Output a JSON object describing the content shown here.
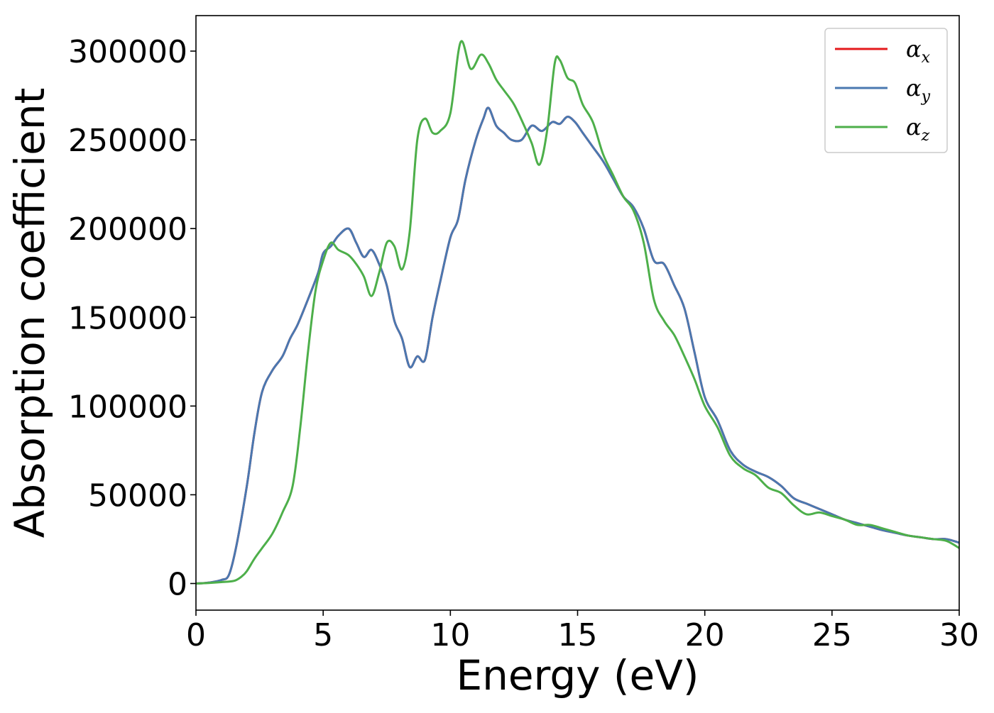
{
  "chart_data": {
    "type": "line",
    "title": "",
    "xlabel": "Energy (eV)",
    "ylabel": "Absorption coefficient",
    "xlim": [
      0,
      30
    ],
    "ylim": [
      -15000,
      320000
    ],
    "xticks": [
      0,
      5,
      10,
      15,
      20,
      25,
      30
    ],
    "xtick_labels": [
      "0",
      "5",
      "10",
      "15",
      "20",
      "25",
      "30"
    ],
    "yticks": [
      0,
      50000,
      100000,
      150000,
      200000,
      250000,
      300000
    ],
    "ytick_labels": [
      "0",
      "50000",
      "100000",
      "150000",
      "200000",
      "250000",
      "300000"
    ],
    "grid": false,
    "legend_position": "top-right",
    "series": [
      {
        "name": "αx",
        "legend_symbol": "α",
        "legend_subscript": "x",
        "color": "#e41a1c",
        "x": [
          0,
          0.5,
          1.0,
          1.3,
          1.6,
          2.0,
          2.3,
          2.6,
          3.0,
          3.4,
          3.7,
          4.0,
          4.4,
          4.8,
          5.0,
          5.3,
          5.6,
          6.0,
          6.3,
          6.6,
          6.9,
          7.2,
          7.5,
          7.8,
          8.1,
          8.4,
          8.7,
          9.0,
          9.3,
          9.6,
          10.0,
          10.3,
          10.6,
          11.0,
          11.3,
          11.5,
          11.8,
          12.1,
          12.4,
          12.8,
          13.2,
          13.6,
          14.0,
          14.3,
          14.6,
          14.9,
          15.2,
          15.6,
          16.0,
          16.4,
          16.8,
          17.2,
          17.6,
          18.0,
          18.4,
          18.8,
          19.2,
          19.6,
          20.0,
          20.5,
          21.0,
          21.5,
          22.0,
          22.5,
          23.0,
          23.5,
          24.0,
          24.5,
          25.0,
          25.5,
          26.0,
          26.5,
          27.0,
          27.5,
          28.0,
          28.5,
          29.0,
          29.5,
          30.0
        ],
        "values": [
          0,
          500,
          2000,
          5000,
          22000,
          55000,
          85000,
          108000,
          120000,
          128000,
          138000,
          146000,
          160000,
          175000,
          186000,
          190000,
          196000,
          200000,
          192000,
          184000,
          188000,
          180000,
          168000,
          148000,
          138000,
          122000,
          128000,
          126000,
          150000,
          170000,
          195000,
          205000,
          228000,
          250000,
          262000,
          268000,
          258000,
          254000,
          250000,
          250000,
          258000,
          255000,
          260000,
          259000,
          263000,
          260000,
          254000,
          246000,
          238000,
          228000,
          218000,
          212000,
          200000,
          182000,
          180000,
          168000,
          155000,
          130000,
          105000,
          92000,
          75000,
          67000,
          63000,
          60000,
          55000,
          48000,
          45000,
          42000,
          39000,
          36000,
          34000,
          32000,
          30000,
          28500,
          27000,
          26000,
          25000,
          25000,
          23000
        ]
      },
      {
        "name": "αy",
        "legend_symbol": "α",
        "legend_subscript": "y",
        "color": "#4a78b0",
        "x": [
          0,
          0.5,
          1.0,
          1.3,
          1.6,
          2.0,
          2.3,
          2.6,
          3.0,
          3.4,
          3.7,
          4.0,
          4.4,
          4.8,
          5.0,
          5.3,
          5.6,
          6.0,
          6.3,
          6.6,
          6.9,
          7.2,
          7.5,
          7.8,
          8.1,
          8.4,
          8.7,
          9.0,
          9.3,
          9.6,
          10.0,
          10.3,
          10.6,
          11.0,
          11.3,
          11.5,
          11.8,
          12.1,
          12.4,
          12.8,
          13.2,
          13.6,
          14.0,
          14.3,
          14.6,
          14.9,
          15.2,
          15.6,
          16.0,
          16.4,
          16.8,
          17.2,
          17.6,
          18.0,
          18.4,
          18.8,
          19.2,
          19.6,
          20.0,
          20.5,
          21.0,
          21.5,
          22.0,
          22.5,
          23.0,
          23.5,
          24.0,
          24.5,
          25.0,
          25.5,
          26.0,
          26.5,
          27.0,
          27.5,
          28.0,
          28.5,
          29.0,
          29.5,
          30.0
        ],
        "values": [
          0,
          500,
          2000,
          5000,
          22000,
          55000,
          85000,
          108000,
          120000,
          128000,
          138000,
          146000,
          160000,
          175000,
          186000,
          190000,
          196000,
          200000,
          192000,
          184000,
          188000,
          180000,
          168000,
          148000,
          138000,
          122000,
          128000,
          126000,
          150000,
          170000,
          195000,
          205000,
          228000,
          250000,
          262000,
          268000,
          258000,
          254000,
          250000,
          250000,
          258000,
          255000,
          260000,
          259000,
          263000,
          260000,
          254000,
          246000,
          238000,
          228000,
          218000,
          212000,
          200000,
          182000,
          180000,
          168000,
          155000,
          130000,
          105000,
          92000,
          75000,
          67000,
          63000,
          60000,
          55000,
          48000,
          45000,
          42000,
          39000,
          36000,
          34000,
          32000,
          30000,
          28500,
          27000,
          26000,
          25000,
          25000,
          23000
        ]
      },
      {
        "name": "αz",
        "legend_symbol": "α",
        "legend_subscript": "z",
        "color": "#4daf4a",
        "x": [
          0,
          0.5,
          1.0,
          1.5,
          1.8,
          2.0,
          2.3,
          2.6,
          3.0,
          3.4,
          3.8,
          4.1,
          4.4,
          4.7,
          5.0,
          5.3,
          5.6,
          6.0,
          6.3,
          6.6,
          6.9,
          7.2,
          7.5,
          7.8,
          8.1,
          8.4,
          8.7,
          9.0,
          9.3,
          9.6,
          10.0,
          10.4,
          10.8,
          11.2,
          11.5,
          11.8,
          12.1,
          12.5,
          12.9,
          13.2,
          13.5,
          13.8,
          14.1,
          14.3,
          14.6,
          14.9,
          15.2,
          15.6,
          16.0,
          16.4,
          16.8,
          17.2,
          17.6,
          18.0,
          18.4,
          18.8,
          19.2,
          19.6,
          20.0,
          20.5,
          21.0,
          21.5,
          22.0,
          22.5,
          23.0,
          23.5,
          24.0,
          24.5,
          25.0,
          25.5,
          26.0,
          26.5,
          27.0,
          27.5,
          28.0,
          28.5,
          29.0,
          29.5,
          30.0
        ],
        "values": [
          0,
          300,
          800,
          1500,
          4000,
          7000,
          14000,
          20000,
          28000,
          40000,
          55000,
          88000,
          130000,
          165000,
          182000,
          192000,
          188000,
          185000,
          180000,
          173000,
          162000,
          175000,
          192000,
          190000,
          177000,
          198000,
          250000,
          262000,
          254000,
          255000,
          265000,
          305000,
          290000,
          298000,
          293000,
          284000,
          278000,
          270000,
          258000,
          248000,
          236000,
          255000,
          293000,
          295000,
          285000,
          282000,
          270000,
          260000,
          242000,
          230000,
          218000,
          210000,
          192000,
          160000,
          148000,
          140000,
          128000,
          115000,
          100000,
          88000,
          72000,
          65000,
          61000,
          54000,
          51000,
          44000,
          39000,
          40000,
          38000,
          36000,
          33000,
          33000,
          31000,
          29000,
          27000,
          26000,
          25000,
          24000,
          20000
        ]
      }
    ]
  }
}
